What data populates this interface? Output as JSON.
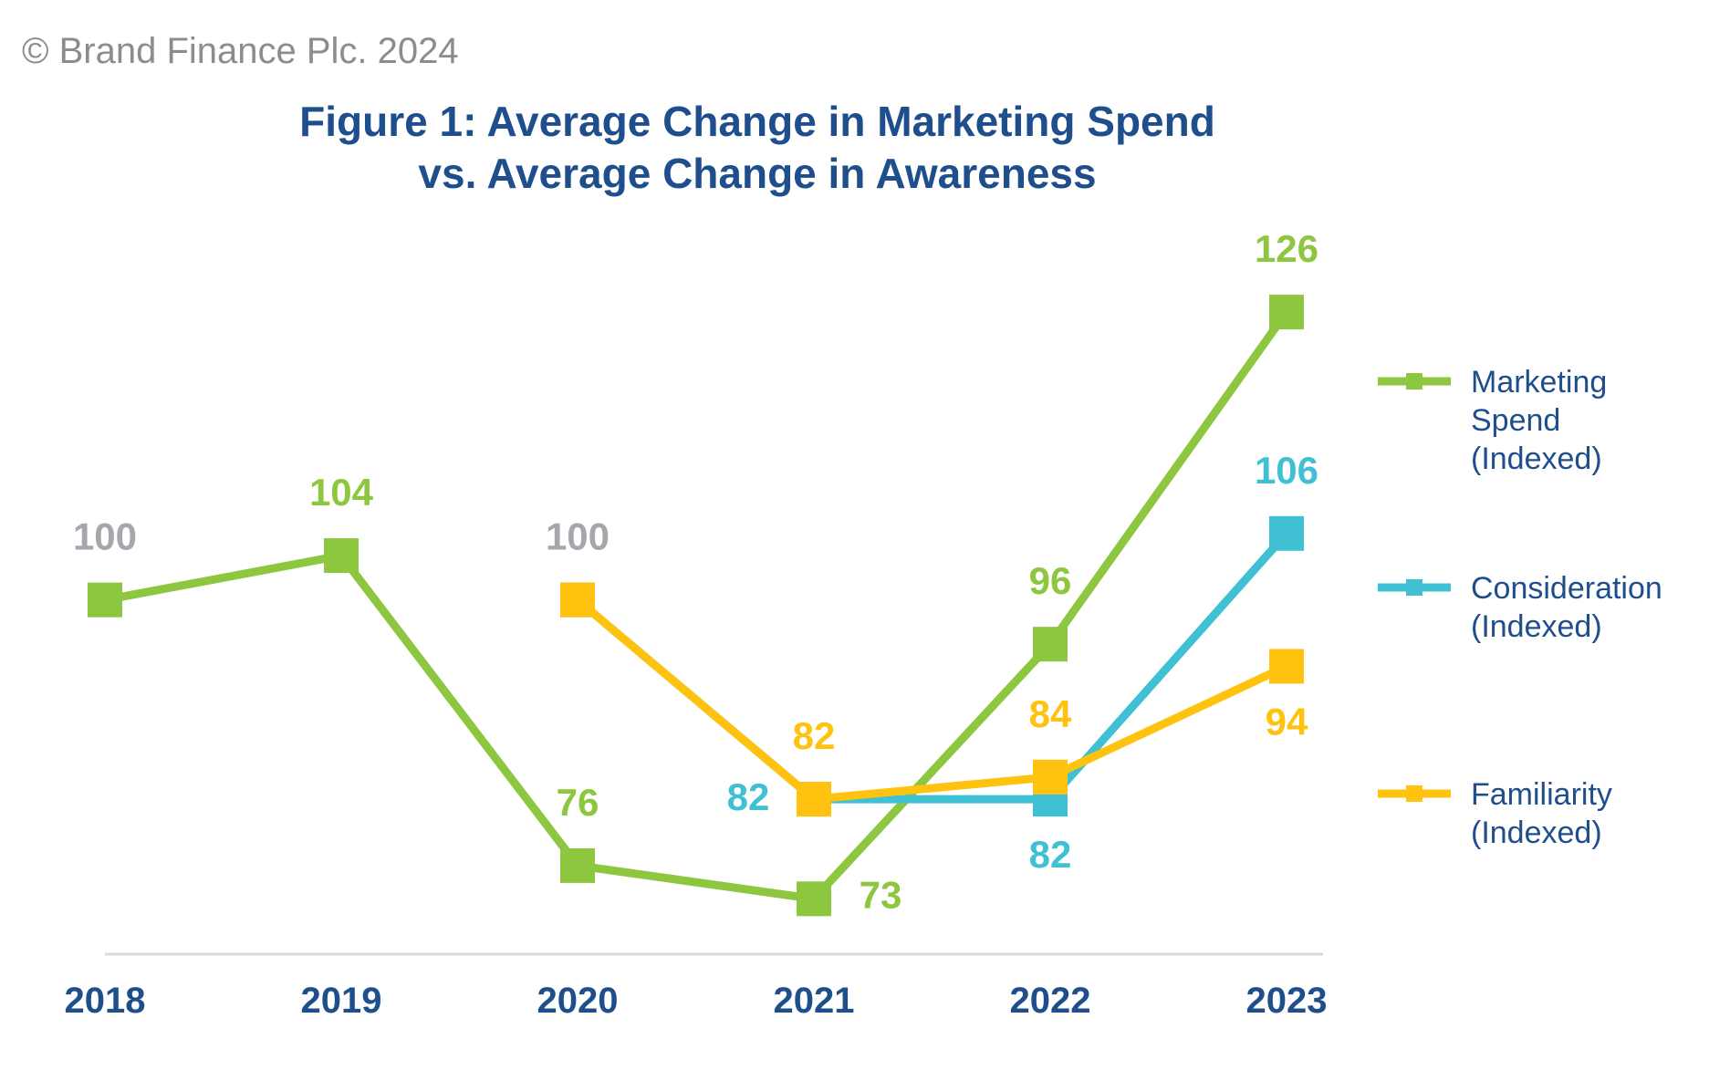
{
  "header": {
    "copyright": "© Brand Finance Plc. 2024",
    "title_line1": "Figure 1: Average Change in Marketing Spend",
    "title_line2": "vs. Average Change in Awareness"
  },
  "chart_data": {
    "type": "line",
    "categories": [
      "2018",
      "2019",
      "2020",
      "2021",
      "2022",
      "2023"
    ],
    "ylim": [
      68,
      134
    ],
    "grid": false,
    "legend_position": "right",
    "baseline_label_color": "#a6a6ad",
    "series": [
      {
        "name": "Marketing Spend (Indexed)",
        "legend_lines": [
          "Marketing",
          "Spend",
          "(Indexed)"
        ],
        "color": "#8dc63f",
        "values": [
          100,
          104,
          76,
          73,
          96,
          126
        ],
        "labels": [
          "100",
          "104",
          "76",
          "73",
          "96",
          "126"
        ]
      },
      {
        "name": "Consideration (Indexed)",
        "legend_lines": [
          "Consideration",
          "(Indexed)"
        ],
        "color": "#3fc1d3",
        "values": [
          null,
          null,
          100,
          82,
          82,
          106
        ],
        "labels": [
          "",
          "",
          "",
          "82",
          "82",
          "106"
        ]
      },
      {
        "name": "Familiarity (Indexed)",
        "legend_lines": [
          "Familiarity",
          "(Indexed)"
        ],
        "color": "#ffc20e",
        "values": [
          null,
          null,
          100,
          82,
          84,
          94
        ],
        "labels": [
          "",
          "",
          "100",
          "82",
          "84",
          "94"
        ]
      }
    ]
  }
}
